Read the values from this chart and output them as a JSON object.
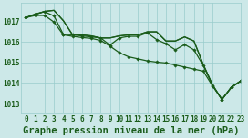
{
  "title": "Graphe pression niveau de la mer (hPa)",
  "background_color": "#cce8e8",
  "grid_color": "#99cccc",
  "line_color": "#1a5c1a",
  "xlim": [
    -0.5,
    23
  ],
  "ylim": [
    1012.5,
    1017.9
  ],
  "yticks": [
    1013,
    1014,
    1015,
    1016,
    1017
  ],
  "xticks": [
    0,
    1,
    2,
    3,
    4,
    5,
    6,
    7,
    8,
    9,
    10,
    11,
    12,
    13,
    14,
    15,
    16,
    17,
    18,
    19,
    20,
    21,
    22,
    23
  ],
  "series": [
    {
      "y": [
        1017.2,
        1017.35,
        1017.5,
        1017.55,
        1017.05,
        1016.35,
        1016.35,
        1016.3,
        1016.2,
        1016.2,
        1016.3,
        1016.35,
        1016.35,
        1016.5,
        1016.5,
        1016.05,
        1016.05,
        1016.25,
        1016.05,
        1014.9,
        1013.9,
        1013.2,
        1013.8,
        1014.1
      ],
      "marker": false,
      "lw": 0.9
    },
    {
      "y": [
        1017.2,
        1017.35,
        1017.5,
        1017.55,
        1017.05,
        1016.35,
        1016.35,
        1016.3,
        1016.2,
        1016.2,
        1016.3,
        1016.35,
        1016.35,
        1016.5,
        1016.5,
        1016.05,
        1016.05,
        1016.25,
        1016.05,
        1014.9,
        1013.9,
        1013.2,
        1013.8,
        1014.1
      ],
      "marker": false,
      "lw": 0.9
    },
    {
      "y": [
        1017.2,
        1017.38,
        1017.48,
        1017.28,
        1016.38,
        1016.35,
        1016.3,
        1016.25,
        1016.2,
        1015.85,
        1016.2,
        1016.28,
        1016.28,
        1016.45,
        1016.12,
        1015.92,
        1015.62,
        1015.88,
        1015.62,
        1014.85,
        1013.88,
        1013.2,
        1013.78,
        1014.1
      ],
      "marker": true,
      "lw": 0.9
    },
    {
      "y": [
        1017.2,
        1017.3,
        1017.3,
        1016.98,
        1016.35,
        1016.28,
        1016.22,
        1016.18,
        1016.08,
        1015.8,
        1015.48,
        1015.28,
        1015.18,
        1015.08,
        1015.02,
        1014.98,
        1014.88,
        1014.78,
        1014.68,
        1014.58,
        1013.85,
        1013.2,
        1013.78,
        1014.1
      ],
      "marker": true,
      "lw": 0.9
    }
  ],
  "title_fontsize": 7.5,
  "tick_fontsize": 5.5
}
